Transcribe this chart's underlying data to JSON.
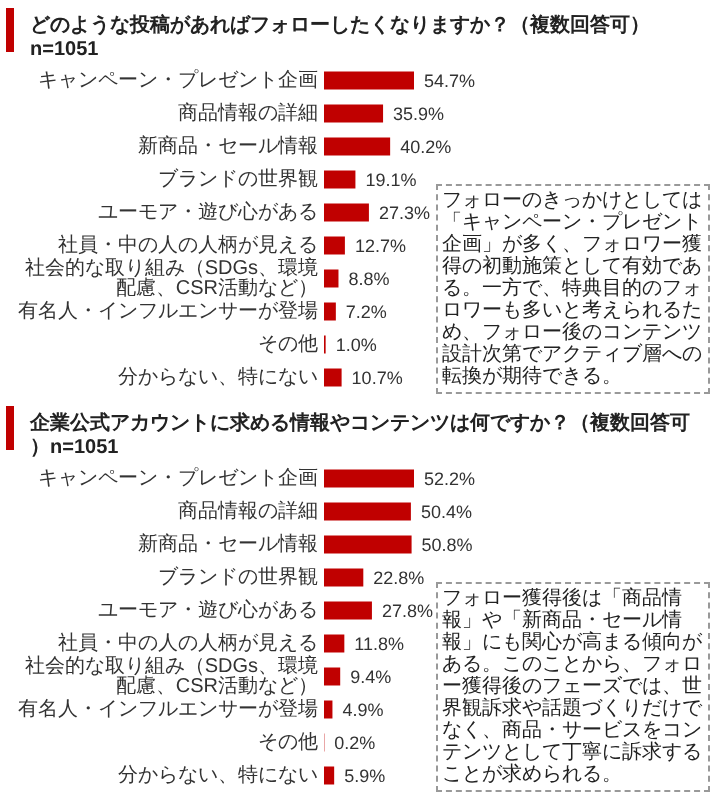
{
  "chart_data": [
    {
      "type": "bar",
      "orientation": "horizontal",
      "title": "どのような投稿があればフォローしたくなりますか？（複数回答可）n=1051",
      "categories": [
        "キャンペーン・プレゼント企画",
        "商品情報の詳細",
        "新商品・セール情報",
        "ブランドの世界観",
        "ユーモア・遊び心がある",
        "社員・中の人の人柄が見える",
        "社会的な取り組み（SDGs、環境配慮、CSR活動など）",
        "有名人・インフルエンサーが登場",
        "その他",
        "分からない、特にない"
      ],
      "values": [
        54.7,
        35.9,
        40.2,
        19.1,
        27.3,
        12.7,
        8.8,
        7.2,
        1.0,
        10.7
      ],
      "value_labels": [
        "54.7%",
        "35.9%",
        "40.2%",
        "19.1%",
        "27.3%",
        "12.7%",
        "8.8%",
        "7.2%",
        "1.0%",
        "10.7%"
      ],
      "color": "#c00000",
      "annotations": [
        "フォローのきっかけとしては「キャンペーン・プレゼント企画」が多く、フォロワー獲得の初動施策として有効である。一方で、特典目的のフォロワーも多いと考えられるため、フォロー後のコンテンツ設計次第でアクティブ層への転換が期待できる。"
      ]
    },
    {
      "type": "bar",
      "orientation": "horizontal",
      "title": "企業公式アカウントに求める情報やコンテンツは何ですか？（複数回答可）n=1051",
      "categories": [
        "キャンペーン・プレゼント企画",
        "商品情報の詳細",
        "新商品・セール情報",
        "ブランドの世界観",
        "ユーモア・遊び心がある",
        "社員・中の人の人柄が見える",
        "社会的な取り組み（SDGs、環境配慮、CSR活動など）",
        "有名人・インフルエンサーが登場",
        "その他",
        "分からない、特にない"
      ],
      "values": [
        52.2,
        50.4,
        50.8,
        22.8,
        27.8,
        11.8,
        9.4,
        4.9,
        0.2,
        5.9
      ],
      "value_labels": [
        "52.2%",
        "50.4%",
        "50.8%",
        "22.8%",
        "27.8%",
        "11.8%",
        "9.4%",
        "4.9%",
        "0.2%",
        "5.9%"
      ],
      "color": "#c00000",
      "annotations": [
        "フォロー獲得後は「商品情報」や「新商品・セール情報」にも関心が高まる傾向がある。このことから、フォロー獲得後のフェーズでは、世界観訴求や話題づくりだけでなく、商品・サービスをコンテンツとして丁寧に訴求することが求められる。"
      ]
    }
  ]
}
